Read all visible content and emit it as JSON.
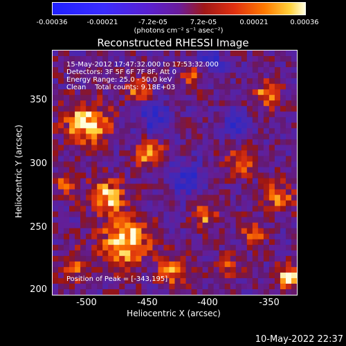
{
  "colorbar": {
    "tick_labels": [
      "-0.00036",
      "-0.00021",
      "-7.2e-05",
      "7.2e-05",
      "0.00021",
      "0.00036"
    ],
    "unit_label": "(photons cm⁻² s⁻¹ asec⁻²)"
  },
  "plot": {
    "title": "Reconstructed RHESSI Image",
    "info_lines": [
      "15-May-2012 17:47:32.000 to 17:53:32.000",
      "Detectors: 3F 5F 6F 7F 8F, Att 0",
      "Energy Range: 25.0 - 50.0 keV",
      "Clean    Total counts: 9.18E+03"
    ],
    "peak_label": "Position of Peak = [-343,195]",
    "x_axis_label": "Heliocentric X (arcsec)",
    "y_axis_label": "Heliocentric Y (arcsec)",
    "x_ticks": [
      "-500",
      "-450",
      "-400",
      "-350"
    ],
    "y_ticks": [
      "350",
      "300",
      "250",
      "200"
    ],
    "x_range": [
      -525,
      -328
    ],
    "y_range": [
      197,
      394
    ]
  },
  "timestamp": "10-May-2022 22:37",
  "colors": {
    "low": "#2020ff",
    "mid": "#6a1c9c",
    "high": "#ffffe0"
  }
}
